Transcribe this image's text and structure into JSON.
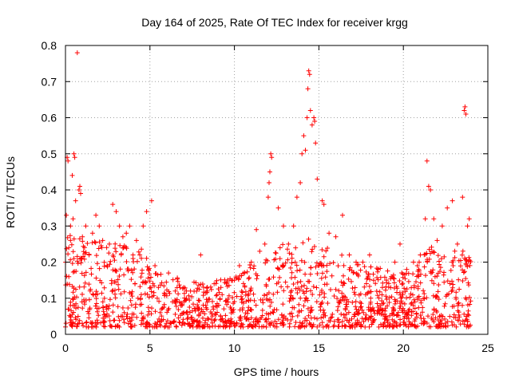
{
  "chart_data": {
    "type": "scatter",
    "title": "Day 164 of 2025, Rate Of TEC Index for receiver krgg",
    "xlabel": "GPS time / hours",
    "ylabel": "ROTI / TECUs",
    "xlim": [
      0,
      25
    ],
    "ylim": [
      0,
      0.8
    ],
    "xticks": [
      0,
      5,
      10,
      15,
      20,
      25
    ],
    "yticks": [
      0,
      0.1,
      0.2,
      0.3,
      0.4,
      0.5,
      0.6,
      0.7,
      0.8
    ],
    "xtick_labels": [
      "0",
      "5",
      "10",
      "15",
      "20",
      "25"
    ],
    "ytick_labels": [
      "0",
      "0.1",
      "0.2",
      "0.3",
      "0.4",
      "0.5",
      "0.6",
      "0.7",
      "0.8"
    ],
    "grid": true,
    "marker": "plus",
    "color": "#ff0000",
    "series": [
      {
        "name": "ROTI",
        "points": [
          [
            0.05,
            0.33
          ],
          [
            0.1,
            0.49
          ],
          [
            0.15,
            0.48
          ],
          [
            0.3,
            0.3
          ],
          [
            0.4,
            0.44
          ],
          [
            0.5,
            0.5
          ],
          [
            0.55,
            0.49
          ],
          [
            0.7,
            0.78
          ],
          [
            0.8,
            0.4
          ],
          [
            0.85,
            0.41
          ],
          [
            0.9,
            0.39
          ],
          [
            0.6,
            0.37
          ],
          [
            0.2,
            0.24
          ],
          [
            0.3,
            0.26
          ],
          [
            0.45,
            0.32
          ],
          [
            1.0,
            0.27
          ],
          [
            1.2,
            0.3
          ],
          [
            1.4,
            0.22
          ],
          [
            1.6,
            0.28
          ],
          [
            1.8,
            0.33
          ],
          [
            2.0,
            0.3
          ],
          [
            2.2,
            0.26
          ],
          [
            2.6,
            0.25
          ],
          [
            2.8,
            0.36
          ],
          [
            3.0,
            0.34
          ],
          [
            3.2,
            0.3
          ],
          [
            3.4,
            0.27
          ],
          [
            3.6,
            0.28
          ],
          [
            3.8,
            0.3
          ],
          [
            4.0,
            0.22
          ],
          [
            4.2,
            0.26
          ],
          [
            4.4,
            0.22
          ],
          [
            4.6,
            0.3
          ],
          [
            4.8,
            0.34
          ],
          [
            5.1,
            0.37
          ],
          [
            5.3,
            0.19
          ],
          [
            5.5,
            0.13
          ],
          [
            6.1,
            0.17
          ],
          [
            6.5,
            0.12
          ],
          [
            7.0,
            0.13
          ],
          [
            7.4,
            0.12
          ],
          [
            8.0,
            0.22
          ],
          [
            8.4,
            0.12
          ],
          [
            8.8,
            0.14
          ],
          [
            9.2,
            0.13
          ],
          [
            9.6,
            0.15
          ],
          [
            10.0,
            0.15
          ],
          [
            10.3,
            0.19
          ],
          [
            10.6,
            0.17
          ],
          [
            11.0,
            0.2
          ],
          [
            11.3,
            0.29
          ],
          [
            11.5,
            0.23
          ],
          [
            11.8,
            0.25
          ],
          [
            12.0,
            0.38
          ],
          [
            12.05,
            0.42
          ],
          [
            12.1,
            0.45
          ],
          [
            12.15,
            0.5
          ],
          [
            12.2,
            0.49
          ],
          [
            12.6,
            0.35
          ],
          [
            12.9,
            0.3
          ],
          [
            13.2,
            0.25
          ],
          [
            13.5,
            0.3
          ],
          [
            13.7,
            0.38
          ],
          [
            13.9,
            0.42
          ],
          [
            14.0,
            0.5
          ],
          [
            14.1,
            0.55
          ],
          [
            14.2,
            0.51
          ],
          [
            14.3,
            0.6
          ],
          [
            14.35,
            0.68
          ],
          [
            14.4,
            0.73
          ],
          [
            14.45,
            0.72
          ],
          [
            14.5,
            0.62
          ],
          [
            14.6,
            0.58
          ],
          [
            14.7,
            0.6
          ],
          [
            14.75,
            0.59
          ],
          [
            14.8,
            0.53
          ],
          [
            14.9,
            0.43
          ],
          [
            15.2,
            0.37
          ],
          [
            15.3,
            0.36
          ],
          [
            15.6,
            0.28
          ],
          [
            16.0,
            0.27
          ],
          [
            16.4,
            0.33
          ],
          [
            16.8,
            0.22
          ],
          [
            17.2,
            0.2
          ],
          [
            17.6,
            0.2
          ],
          [
            18.0,
            0.22
          ],
          [
            18.5,
            0.18
          ],
          [
            19.0,
            0.15
          ],
          [
            19.5,
            0.2
          ],
          [
            19.8,
            0.25
          ],
          [
            20.2,
            0.18
          ],
          [
            20.6,
            0.2
          ],
          [
            21.0,
            0.22
          ],
          [
            21.3,
            0.32
          ],
          [
            21.4,
            0.48
          ],
          [
            21.5,
            0.41
          ],
          [
            21.6,
            0.4
          ],
          [
            21.8,
            0.32
          ],
          [
            22.0,
            0.26
          ],
          [
            22.3,
            0.3
          ],
          [
            22.6,
            0.35
          ],
          [
            22.9,
            0.37
          ],
          [
            23.2,
            0.25
          ],
          [
            23.5,
            0.38
          ],
          [
            23.6,
            0.62
          ],
          [
            23.65,
            0.63
          ],
          [
            23.7,
            0.61
          ],
          [
            23.8,
            0.3
          ],
          [
            23.9,
            0.32
          ]
        ],
        "dense_band": "most points lie between 0 and about 0.25 TECUs across the full 0–24 h range"
      }
    ]
  }
}
